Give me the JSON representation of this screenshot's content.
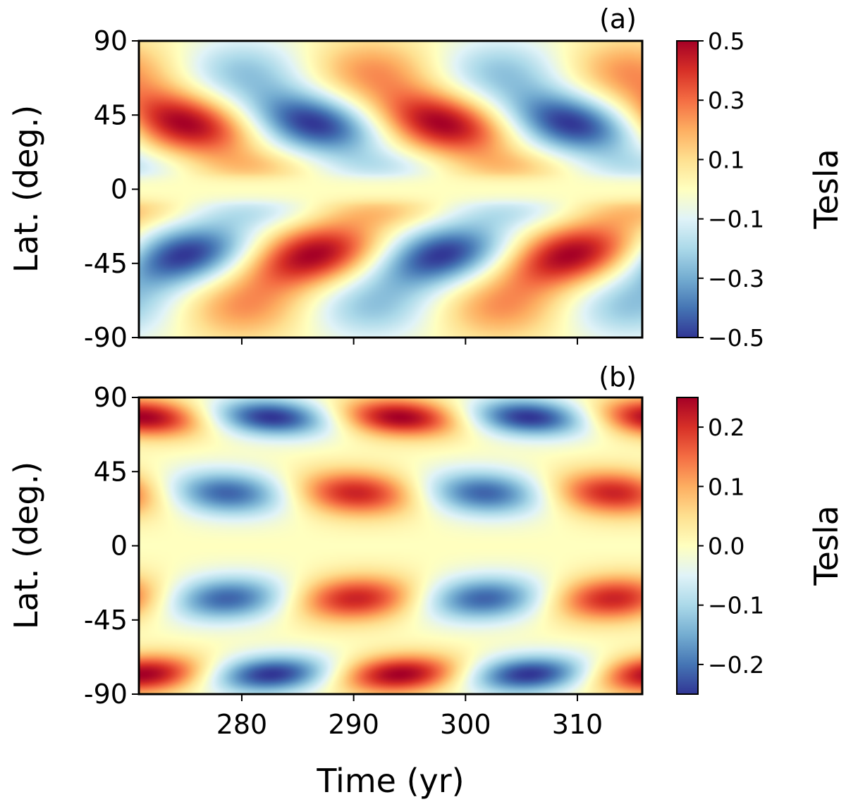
{
  "chart_data": [
    {
      "type": "heatmap",
      "panel_label": "(a)",
      "title": "",
      "xlabel": "",
      "ylabel": "Lat. (deg.)",
      "xlim": [
        270.8,
        315.8
      ],
      "ylim": [
        -90,
        90
      ],
      "x_ticks": [
        280,
        290,
        300,
        310
      ],
      "x_tick_labels": [
        "",
        "",
        "",
        ""
      ],
      "y_ticks": [
        90,
        45,
        0,
        -45,
        -90
      ],
      "y_tick_labels": [
        "90",
        "45",
        "0",
        "-45",
        "-90"
      ],
      "colorbar": {
        "label": "Tesla",
        "vmin": -0.5,
        "vmax": 0.5,
        "ticks": [
          0.5,
          0.3,
          0.1,
          -0.1,
          -0.3,
          -0.5
        ],
        "tick_labels": [
          "0.5",
          "0.3",
          "0.1",
          "−0.1",
          "−0.3",
          "−0.5"
        ],
        "colormap": "RdYlBu_r"
      },
      "field_model": {
        "period_yr": 23,
        "description": "Butterfly pattern: antisymmetric about equator, peak |B| ~0.5 near ±45 deg, sign reverses every ~11.5 yr",
        "peak_times_north_positive": [
          274.5,
          297.5
        ],
        "peak_times_north_negative": [
          286.0,
          309.0
        ],
        "peak_lat": 40,
        "amplitude": 0.5
      }
    },
    {
      "type": "heatmap",
      "panel_label": "(b)",
      "title": "",
      "xlabel": "Time (yr)",
      "ylabel": "Lat. (deg.)",
      "xlim": [
        270.8,
        315.8
      ],
      "ylim": [
        -90,
        90
      ],
      "x_ticks": [
        280,
        290,
        300,
        310
      ],
      "x_tick_labels": [
        "280",
        "290",
        "300",
        "310"
      ],
      "y_ticks": [
        90,
        45,
        0,
        -45,
        -90
      ],
      "y_tick_labels": [
        "90",
        "45",
        "0",
        "-45",
        "-90"
      ],
      "colorbar": {
        "label": "Tesla",
        "vmin": -0.25,
        "vmax": 0.25,
        "ticks": [
          0.2,
          0.1,
          0.0,
          -0.1,
          -0.2
        ],
        "tick_labels": [
          "0.2",
          "0.1",
          "0.0",
          "−0.1",
          "−0.2"
        ],
        "colormap": "RdYlBu_r"
      },
      "field_model": {
        "period_yr": 23,
        "description": "Two latitude bands per hemisphere (~30 deg and ~80 deg) with opposite signs and drifting phase; peak |B| ~0.25",
        "amplitude": 0.25
      }
    }
  ]
}
